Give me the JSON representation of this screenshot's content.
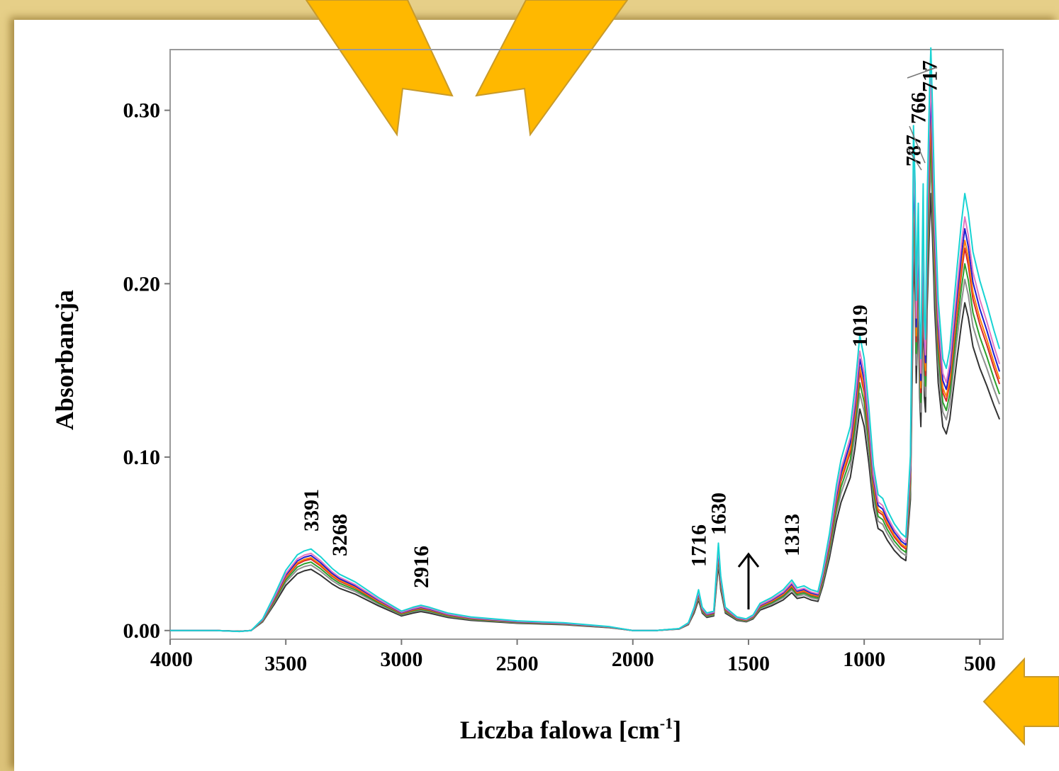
{
  "chart_data": {
    "type": "line",
    "xlabel": "Liczba falowa [cm",
    "xlabel_sup": "-1",
    "xlabel_end": "]",
    "ylabel": "Absorbancja",
    "xlim": [
      4000,
      400
    ],
    "ylim": [
      -0.005,
      0.335
    ],
    "x_ticks": [
      {
        "value": 4000,
        "label": "4000"
      },
      {
        "value": 3500,
        "label": "3500"
      },
      {
        "value": 3000,
        "label": "3000"
      },
      {
        "value": 2500,
        "label": "2500"
      },
      {
        "value": 2000,
        "label": "2000"
      },
      {
        "value": 1500,
        "label": "1500"
      },
      {
        "value": 1000,
        "label": "1000"
      },
      {
        "value": 500,
        "label": "500"
      }
    ],
    "y_ticks": [
      {
        "value": 0.0,
        "label": "0.00"
      },
      {
        "value": 0.1,
        "label": "0.10"
      },
      {
        "value": 0.2,
        "label": "0.20"
      },
      {
        "value": 0.3,
        "label": "0.30"
      }
    ],
    "grid": false,
    "legend": "none",
    "base_spectrum": [
      [
        4000,
        0.0
      ],
      [
        3800,
        0.0
      ],
      [
        3700,
        -0.0005
      ],
      [
        3650,
        0.0
      ],
      [
        3600,
        0.006
      ],
      [
        3550,
        0.018
      ],
      [
        3500,
        0.031
      ],
      [
        3450,
        0.039
      ],
      [
        3420,
        0.041
      ],
      [
        3391,
        0.042
      ],
      [
        3350,
        0.038
      ],
      [
        3300,
        0.032
      ],
      [
        3268,
        0.029
      ],
      [
        3200,
        0.025
      ],
      [
        3100,
        0.017
      ],
      [
        3000,
        0.01
      ],
      [
        2950,
        0.012
      ],
      [
        2916,
        0.013
      ],
      [
        2880,
        0.012
      ],
      [
        2800,
        0.009
      ],
      [
        2700,
        0.007
      ],
      [
        2500,
        0.005
      ],
      [
        2300,
        0.004
      ],
      [
        2100,
        0.002
      ],
      [
        2000,
        0.0
      ],
      [
        1900,
        0.0
      ],
      [
        1800,
        0.001
      ],
      [
        1760,
        0.004
      ],
      [
        1735,
        0.012
      ],
      [
        1716,
        0.021
      ],
      [
        1700,
        0.012
      ],
      [
        1680,
        0.009
      ],
      [
        1650,
        0.01
      ],
      [
        1640,
        0.028
      ],
      [
        1630,
        0.045
      ],
      [
        1620,
        0.028
      ],
      [
        1600,
        0.012
      ],
      [
        1550,
        0.007
      ],
      [
        1510,
        0.006
      ],
      [
        1480,
        0.008
      ],
      [
        1450,
        0.014
      ],
      [
        1400,
        0.017
      ],
      [
        1350,
        0.021
      ],
      [
        1313,
        0.026
      ],
      [
        1290,
        0.022
      ],
      [
        1260,
        0.023
      ],
      [
        1230,
        0.021
      ],
      [
        1200,
        0.02
      ],
      [
        1180,
        0.03
      ],
      [
        1150,
        0.05
      ],
      [
        1120,
        0.075
      ],
      [
        1100,
        0.088
      ],
      [
        1060,
        0.105
      ],
      [
        1040,
        0.125
      ],
      [
        1019,
        0.152
      ],
      [
        1000,
        0.14
      ],
      [
        980,
        0.115
      ],
      [
        960,
        0.085
      ],
      [
        940,
        0.07
      ],
      [
        920,
        0.068
      ],
      [
        900,
        0.062
      ],
      [
        870,
        0.055
      ],
      [
        840,
        0.05
      ],
      [
        820,
        0.048
      ],
      [
        800,
        0.09
      ],
      [
        790,
        0.2
      ],
      [
        787,
        0.26
      ],
      [
        780,
        0.23
      ],
      [
        775,
        0.17
      ],
      [
        770,
        0.2
      ],
      [
        766,
        0.22
      ],
      [
        760,
        0.16
      ],
      [
        755,
        0.14
      ],
      [
        745,
        0.23
      ],
      [
        740,
        0.16
      ],
      [
        735,
        0.15
      ],
      [
        728,
        0.22
      ],
      [
        717,
        0.28
      ],
      [
        712,
        0.3
      ],
      [
        705,
        0.27
      ],
      [
        695,
        0.22
      ],
      [
        680,
        0.17
      ],
      [
        660,
        0.14
      ],
      [
        645,
        0.135
      ],
      [
        630,
        0.145
      ],
      [
        600,
        0.185
      ],
      [
        580,
        0.21
      ],
      [
        565,
        0.225
      ],
      [
        550,
        0.215
      ],
      [
        530,
        0.195
      ],
      [
        500,
        0.18
      ],
      [
        470,
        0.168
      ],
      [
        440,
        0.155
      ],
      [
        415,
        0.145
      ]
    ],
    "series": [
      {
        "color": "#333333",
        "scale": 0.84
      },
      {
        "color": "#8f8f8f",
        "scale": 0.9
      },
      {
        "color": "#2ca02c",
        "scale": 0.94
      },
      {
        "color": "#d62728",
        "scale": 0.98
      },
      {
        "color": "#ff7f0e",
        "scale": 1.0
      },
      {
        "color": "#1f1fd0",
        "scale": 1.03
      },
      {
        "color": "#e377c2",
        "scale": 1.06
      },
      {
        "color": "#17d3d3",
        "scale": 1.12
      }
    ],
    "peak_labels": [
      {
        "x": 3391,
        "text": "3391"
      },
      {
        "x": 3268,
        "text": "3268"
      },
      {
        "x": 2916,
        "text": "2916"
      },
      {
        "x": 1716,
        "text": "1716"
      },
      {
        "x": 1630,
        "text": "1630"
      },
      {
        "x": 1313,
        "text": "1313"
      },
      {
        "x": 1019,
        "text": "1019"
      },
      {
        "x": 787,
        "text": "787"
      },
      {
        "x": 766,
        "text": "766"
      },
      {
        "x": 717,
        "text": "717"
      }
    ]
  },
  "decor": {
    "arrow_color": "#ffb800",
    "arrow_stroke": "#c89a2a"
  }
}
